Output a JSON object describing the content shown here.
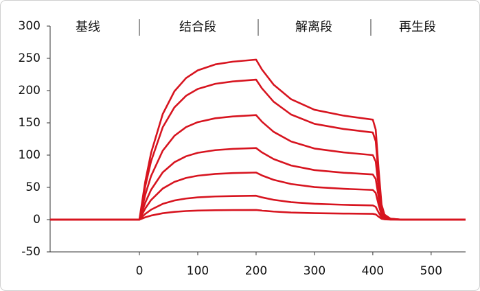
{
  "chart_data": {
    "type": "line",
    "phases": [
      "基线",
      "结合段",
      "解离段",
      "再生段"
    ],
    "x": [
      -153,
      0,
      10,
      20,
      40,
      60,
      80,
      100,
      130,
      160,
      200,
      210,
      230,
      260,
      300,
      350,
      400,
      405,
      410,
      415,
      420,
      430,
      450,
      559
    ],
    "series": [
      {
        "color": "#d7141f",
        "values": [
          0,
          0,
          58.8,
          103.4,
          163.7,
          198.9,
          219.5,
          231.4,
          240.6,
          244.8,
          248,
          232.7,
          209.2,
          186.6,
          170.3,
          161.2,
          155,
          139.5,
          77.5,
          23.3,
          7.8,
          1.6,
          0,
          0
        ]
      },
      {
        "color": "#d7141f",
        "values": [
          0,
          0,
          51.4,
          90.5,
          143.2,
          174.0,
          192.0,
          202.5,
          210.5,
          214.2,
          217,
          203.5,
          182.8,
          162.9,
          148.5,
          140.5,
          135,
          121.5,
          67.5,
          20.3,
          6.8,
          1.4,
          0,
          0
        ]
      },
      {
        "color": "#d7141f",
        "values": [
          0,
          0,
          38.4,
          67.6,
          106.9,
          129.9,
          143.4,
          151.1,
          157.1,
          159.9,
          162,
          151.8,
          136.1,
          121.1,
          110.2,
          104.2,
          100,
          90,
          50,
          15,
          5,
          1,
          0,
          0
        ]
      },
      {
        "color": "#d7141f",
        "values": [
          0,
          0,
          26.3,
          46.3,
          73.3,
          89.0,
          98.2,
          103.6,
          107.7,
          109.6,
          111,
          104.2,
          93.9,
          83.9,
          76.8,
          72.7,
          70,
          63,
          35,
          10.5,
          3.5,
          0.7,
          0,
          0
        ]
      },
      {
        "color": "#d7141f",
        "values": [
          0,
          0,
          17.3,
          30.4,
          48.2,
          58.5,
          64.6,
          68.1,
          70.8,
          72.1,
          73,
          68.5,
          61.7,
          55.2,
          50.5,
          47.8,
          46,
          41.4,
          23,
          6.9,
          2.3,
          0.5,
          0,
          0
        ]
      },
      {
        "color": "#d7141f",
        "values": [
          0,
          0,
          8.8,
          15.4,
          24.4,
          29.7,
          32.7,
          34.5,
          35.9,
          36.5,
          37,
          34.5,
          30.7,
          27.1,
          24.5,
          23,
          22,
          19.8,
          11,
          3.3,
          1.1,
          0.2,
          0,
          0
        ]
      },
      {
        "color": "#d7141f",
        "values": [
          0,
          0,
          3.6,
          6.3,
          9.9,
          12.0,
          13.3,
          14.0,
          14.6,
          14.8,
          15,
          14,
          12.5,
          11,
          10,
          9.4,
          9,
          8.1,
          4.5,
          1.4,
          0.5,
          0.1,
          0,
          0
        ]
      }
    ],
    "xlim": [
      -153,
      559
    ],
    "ylim": [
      -50,
      300
    ],
    "xticks": [
      0,
      100,
      200,
      300,
      400,
      500
    ],
    "yticks": [
      -50,
      0,
      50,
      100,
      150,
      200,
      250,
      300
    ]
  }
}
